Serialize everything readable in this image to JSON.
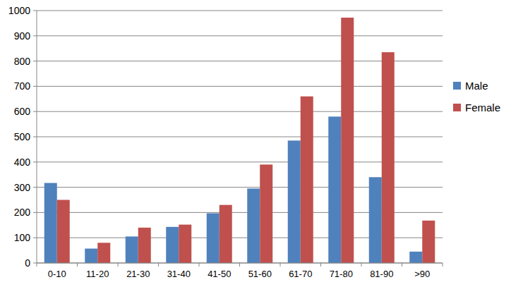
{
  "chart_data": {
    "type": "bar",
    "categories": [
      "0-10",
      "11-20",
      "21-30",
      "31-40",
      "41-50",
      "51-60",
      "61-70",
      "71-80",
      "81-90",
      ">90"
    ],
    "series": [
      {
        "name": "Male",
        "color": "#4f81bd",
        "values": [
          317,
          57,
          105,
          143,
          197,
          295,
          485,
          580,
          340,
          45
        ]
      },
      {
        "name": "Female",
        "color": "#c0504d",
        "values": [
          250,
          80,
          140,
          152,
          230,
          390,
          660,
          972,
          835,
          168
        ]
      }
    ],
    "ylim": [
      0,
      1000
    ],
    "yticks": [
      0,
      100,
      200,
      300,
      400,
      500,
      600,
      700,
      800,
      900,
      1000
    ],
    "grid": true,
    "legend": "right"
  }
}
